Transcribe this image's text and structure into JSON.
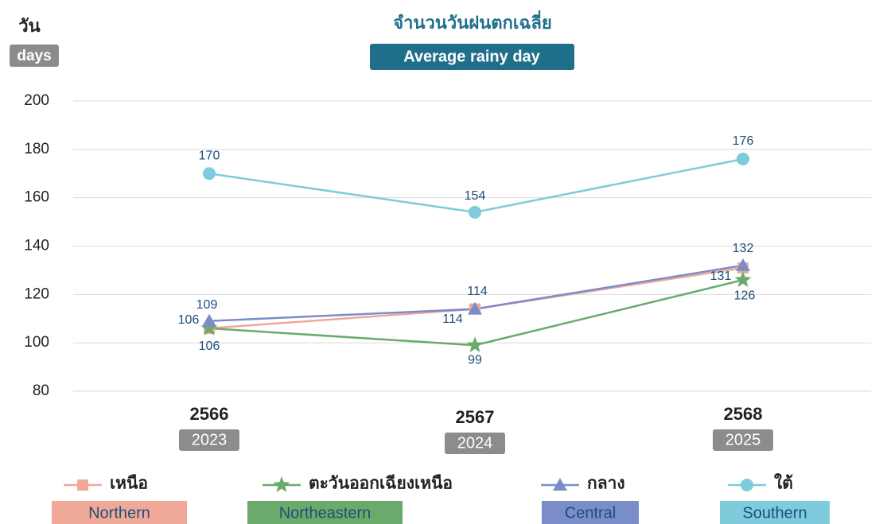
{
  "chart_data": {
    "type": "line",
    "title": "จำนวนวันฝนตกเฉลี่ย",
    "subtitle": "Average rainy day",
    "y_label": "วัน",
    "y_label_en": "days",
    "categories": [
      "2566",
      "2567",
      "2568"
    ],
    "categories_en": [
      "2023",
      "2024",
      "2025"
    ],
    "ylim": [
      80,
      200
    ],
    "yticks": [
      80,
      100,
      120,
      140,
      160,
      180,
      200
    ],
    "grid": true,
    "series": [
      {
        "name": "เหนือ",
        "name_en": "Northern",
        "color": "#f0a899",
        "marker": "square",
        "values": [
          106,
          114,
          131
        ]
      },
      {
        "name": "ตะวันออกเฉียงเหนือ",
        "name_en": "Northeastern",
        "color": "#6aaa6a",
        "marker": "star",
        "values": [
          106,
          99,
          126
        ]
      },
      {
        "name": "กลาง",
        "name_en": "Central",
        "color": "#7b8dc8",
        "marker": "triangle",
        "values": [
          109,
          114,
          132
        ]
      },
      {
        "name": "ใต้",
        "name_en": "Southern",
        "color": "#7dcbdb",
        "marker": "circle",
        "values": [
          170,
          154,
          176
        ]
      }
    ]
  }
}
